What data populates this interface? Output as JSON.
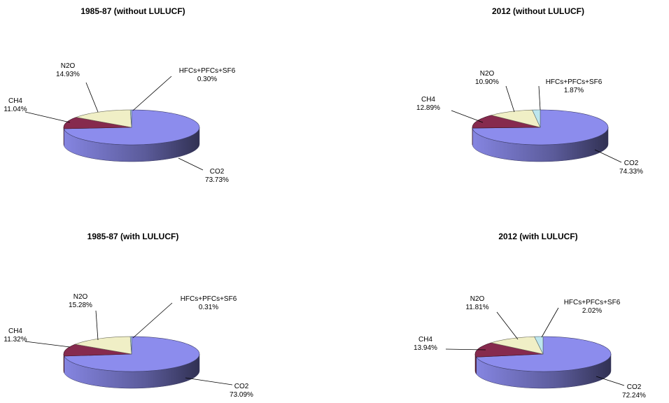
{
  "colors": {
    "CO2": "#8c8ced",
    "CH4": "#862a4e",
    "N2O": "#f0efc6",
    "HFCs+PFCs+SF6": "#bde6ee",
    "leader": "#000000"
  },
  "chart_data": [
    {
      "type": "pie",
      "title": "1985-87 (without LULUCF)",
      "slices": [
        {
          "label": "CO2",
          "value": 73.73,
          "value_label": "73.73%"
        },
        {
          "label": "CH4",
          "value": 11.04,
          "value_label": "11.04%"
        },
        {
          "label": "N2O",
          "value": 14.93,
          "value_label": "14.93%"
        },
        {
          "label": "HFCs+PFCs+SF6",
          "value": 0.3,
          "value_label": "0.30%"
        }
      ]
    },
    {
      "type": "pie",
      "title": "2012 (without LULUCF)",
      "slices": [
        {
          "label": "CO2",
          "value": 74.33,
          "value_label": "74.33%"
        },
        {
          "label": "CH4",
          "value": 12.89,
          "value_label": "12.89%"
        },
        {
          "label": "N2O",
          "value": 10.9,
          "value_label": "10.90%"
        },
        {
          "label": "HFCs+PFCs+SF6",
          "value": 1.87,
          "value_label": "1.87%"
        }
      ]
    },
    {
      "type": "pie",
      "title": "1985-87 (with LULUCF)",
      "slices": [
        {
          "label": "CO2",
          "value": 73.09,
          "value_label": "73.09%"
        },
        {
          "label": "CH4",
          "value": 11.32,
          "value_label": "11.32%"
        },
        {
          "label": "N2O",
          "value": 15.28,
          "value_label": "15.28%"
        },
        {
          "label": "HFCs+PFCs+SF6",
          "value": 0.31,
          "value_label": "0.31%"
        }
      ]
    },
    {
      "type": "pie",
      "title": "2012 (with LULUCF)",
      "slices": [
        {
          "label": "CO2",
          "value": 72.24,
          "value_label": "72.24%"
        },
        {
          "label": "CH4",
          "value": 13.94,
          "value_label": "13.94%"
        },
        {
          "label": "N2O",
          "value": 11.81,
          "value_label": "11.81%"
        },
        {
          "label": "HFCs+PFCs+SF6",
          "value": 2.02,
          "value_label": "2.02%"
        }
      ]
    }
  ]
}
